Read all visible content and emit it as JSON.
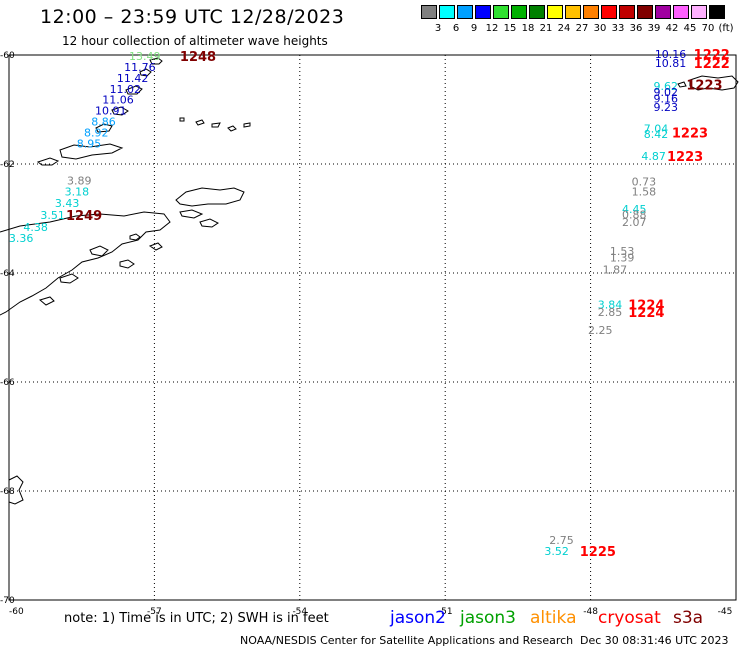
{
  "title": "12:00 – 23:59 UTC 12/28/2023",
  "subtitle": "12 hour collection of altimeter wave heights",
  "scale": {
    "unit": "(ft)",
    "bins": [
      {
        "label": "3",
        "color": "#808080"
      },
      {
        "label": "6",
        "color": "#00ffff"
      },
      {
        "label": "9",
        "color": "#00a0ff"
      },
      {
        "label": "12",
        "color": "#0000ff"
      },
      {
        "label": "15",
        "color": "#30e030"
      },
      {
        "label": "18",
        "color": "#00b000"
      },
      {
        "label": "21",
        "color": "#008000"
      },
      {
        "label": "24",
        "color": "#ffff00"
      },
      {
        "label": "27",
        "color": "#ffc000"
      },
      {
        "label": "30",
        "color": "#ff8000"
      },
      {
        "label": "33",
        "color": "#ff0000"
      },
      {
        "label": "36",
        "color": "#c00000"
      },
      {
        "label": "39",
        "color": "#800000"
      },
      {
        "label": "42",
        "color": "#a000a0"
      },
      {
        "label": "45",
        "color": "#ff60ff"
      },
      {
        "label": "70",
        "color": "#ffb0ff"
      },
      {
        "label": "",
        "color": "#000000"
      }
    ]
  },
  "grid": {
    "latitudes": [
      {
        "label": "-60",
        "value": -60
      },
      {
        "label": "-62",
        "value": -62
      },
      {
        "label": "-64",
        "value": -64
      },
      {
        "label": "-66",
        "value": -66
      },
      {
        "label": "-68",
        "value": -68
      },
      {
        "label": "-70",
        "value": -70
      }
    ],
    "longitudes": [
      {
        "label": "-60",
        "value": -60
      },
      {
        "label": "-57",
        "value": -57
      },
      {
        "label": "-54",
        "value": -54
      },
      {
        "label": "-51",
        "value": -51
      },
      {
        "label": "-48",
        "value": -48
      },
      {
        "label": "-45",
        "value": -45
      }
    ]
  },
  "observations": [
    {
      "text": "13.49",
      "color": "#80e080",
      "lon": -57.2,
      "lat": -60.02
    },
    {
      "text": "11.76",
      "color": "#0000c0",
      "lon": -57.3,
      "lat": -60.22
    },
    {
      "text": "11.42",
      "color": "#0000c0",
      "lon": -57.45,
      "lat": -60.42
    },
    {
      "text": "11.02",
      "color": "#0000c0",
      "lon": -57.6,
      "lat": -60.62
    },
    {
      "text": "11.06",
      "color": "#0000c0",
      "lon": -57.75,
      "lat": -60.82
    },
    {
      "text": "10.91",
      "color": "#0000c0",
      "lon": -57.9,
      "lat": -61.02
    },
    {
      "text": "8.86",
      "color": "#00a0ff",
      "lon": -58.05,
      "lat": -61.22
    },
    {
      "text": "8.92",
      "color": "#00a0ff",
      "lon": -58.2,
      "lat": -61.42
    },
    {
      "text": "8.95",
      "color": "#00a0ff",
      "lon": -58.35,
      "lat": -61.62
    },
    {
      "text": "3.89",
      "color": "#808080",
      "lon": -58.55,
      "lat": -62.3
    },
    {
      "text": "3.18",
      "color": "#00d0d0",
      "lon": -58.6,
      "lat": -62.5
    },
    {
      "text": "3.43",
      "color": "#00d0d0",
      "lon": -58.8,
      "lat": -62.72
    },
    {
      "text": "3.51",
      "color": "#00d0d0",
      "lon": -59.1,
      "lat": -62.94
    },
    {
      "text": "4.38",
      "color": "#00d0d0",
      "lon": -59.45,
      "lat": -63.16
    },
    {
      "text": "3.36",
      "color": "#00d0d0",
      "lon": -59.75,
      "lat": -63.36
    },
    {
      "text": "10.16",
      "color": "#0000c0",
      "lon": -46.35,
      "lat": -59.98
    },
    {
      "text": "10.81",
      "color": "#0000c0",
      "lon": -46.35,
      "lat": -60.15
    },
    {
      "text": "9.62",
      "color": "#00d0d0",
      "lon": -46.45,
      "lat": -60.57
    },
    {
      "text": "9.02",
      "color": "#0000c0",
      "lon": -46.45,
      "lat": -60.68
    },
    {
      "text": "9.16",
      "color": "#0000c0",
      "lon": -46.45,
      "lat": -60.8
    },
    {
      "text": "9.23",
      "color": "#0000c0",
      "lon": -46.45,
      "lat": -60.95
    },
    {
      "text": "7.04",
      "color": "#00d0d0",
      "lon": -46.65,
      "lat": -61.35
    },
    {
      "text": "8.42",
      "color": "#00d0d0",
      "lon": -46.65,
      "lat": -61.45
    },
    {
      "text": "4.87",
      "color": "#00d0d0",
      "lon": -46.7,
      "lat": -61.85
    },
    {
      "text": "0.73",
      "color": "#808080",
      "lon": -46.9,
      "lat": -62.32
    },
    {
      "text": "1.58",
      "color": "#808080",
      "lon": -46.9,
      "lat": -62.5
    },
    {
      "text": "4.45",
      "color": "#00d0d0",
      "lon": -47.1,
      "lat": -62.83
    },
    {
      "text": "0.88",
      "color": "#808080",
      "lon": -47.1,
      "lat": -62.93
    },
    {
      "text": "2.07",
      "color": "#808080",
      "lon": -47.1,
      "lat": -63.06
    },
    {
      "text": "1.53",
      "color": "#808080",
      "lon": -47.35,
      "lat": -63.6
    },
    {
      "text": "1.39",
      "color": "#808080",
      "lon": -47.35,
      "lat": -63.72
    },
    {
      "text": "1.87",
      "color": "#808080",
      "lon": -47.5,
      "lat": -63.94
    },
    {
      "text": "3.84",
      "color": "#00d0d0",
      "lon": -47.6,
      "lat": -64.58
    },
    {
      "text": "2.85",
      "color": "#808080",
      "lon": -47.6,
      "lat": -64.72
    },
    {
      "text": "2.25",
      "color": "#808080",
      "lon": -47.8,
      "lat": -65.05
    },
    {
      "text": "2.75",
      "color": "#808080",
      "lon": -48.6,
      "lat": -68.9
    },
    {
      "text": "3.52",
      "color": "#00d0d0",
      "lon": -48.7,
      "lat": -69.1
    }
  ],
  "pass_times": [
    {
      "text": "1248",
      "color": "#800000",
      "lon": -56.1,
      "lat": -60.02
    },
    {
      "text": "1249",
      "color": "#800000",
      "lon": -58.45,
      "lat": -62.94
    },
    {
      "text": "1222",
      "color": "#ff0000",
      "lon": -45.5,
      "lat": -59.98
    },
    {
      "text": "1222",
      "color": "#ff0000",
      "lon": -45.5,
      "lat": -60.15
    },
    {
      "text": "1223",
      "color": "#800000",
      "lon": -45.65,
      "lat": -60.54
    },
    {
      "text": "1223",
      "color": "#ff0000",
      "lon": -45.95,
      "lat": -61.42
    },
    {
      "text": "1223",
      "color": "#ff0000",
      "lon": -46.05,
      "lat": -61.85
    },
    {
      "text": "1224",
      "color": "#ff0000",
      "lon": -46.85,
      "lat": -64.58
    },
    {
      "text": "1224",
      "color": "#ff0000",
      "lon": -46.85,
      "lat": -64.72
    },
    {
      "text": "1225",
      "color": "#ff0000",
      "lon": -47.85,
      "lat": -69.1
    }
  ],
  "note": "note:  1) Time is in UTC;  2) SWH is in feet",
  "satellites": [
    {
      "name": "jason2",
      "color": "#0000ff"
    },
    {
      "name": "jason3",
      "color": "#00a000"
    },
    {
      "name": "altika",
      "color": "#ff9000"
    },
    {
      "name": "cryosat",
      "color": "#ff0000"
    },
    {
      "name": "s3a",
      "color": "#800000"
    }
  ],
  "credit": "NOAA/NESDIS Center for Satellite Applications and Research",
  "timestamp": "Dec 30 08:31:46 UTC 2023"
}
